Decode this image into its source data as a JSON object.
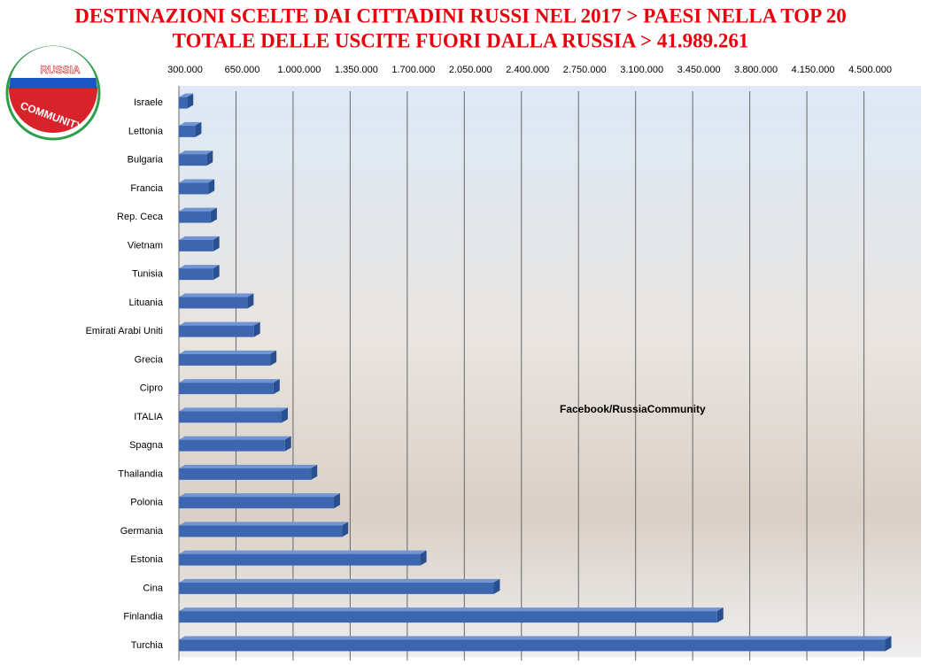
{
  "chart_data": {
    "type": "hbar",
    "title": "DESTINAZIONI SCELTE DAI CITTADINI RUSSI NEL 2017 > PAESI NELLA TOP 20",
    "subtitle": "TOTALE DELLE USCITE FUORI DALLA RUSSIA  > 41.989.261",
    "annotation": "Facebook/RussiaCommunity",
    "logo_text": [
      "RUSSIA",
      "COMMUNITY"
    ],
    "categories": [
      "Israele",
      "Lettonia",
      "Bulgaria",
      "Francia",
      "Rep. Ceca",
      "Vietnam",
      "Tunisia",
      "Lituania",
      "Emirati Arabi Uniti",
      "Grecia",
      "Cipro",
      "ITALIA",
      "Spagna",
      "Thailandia",
      "Polonia",
      "Germania",
      "Estonia",
      "Cina",
      "Finlandia",
      "Turchia"
    ],
    "values": [
      350000,
      400000,
      470000,
      480000,
      495000,
      510000,
      510000,
      720000,
      760000,
      860000,
      880000,
      930000,
      950000,
      1110000,
      1250000,
      1300000,
      1780000,
      2230000,
      3600000,
      4630000
    ],
    "color": "#3c67b0",
    "xlim": [
      300000,
      4850000
    ],
    "xticks": [
      {
        "value": 300000,
        "label": "300.000"
      },
      {
        "value": 650000,
        "label": "650.000"
      },
      {
        "value": 1000000,
        "label": "1.000.000"
      },
      {
        "value": 1350000,
        "label": "1.350.000"
      },
      {
        "value": 1700000,
        "label": "1.700.000"
      },
      {
        "value": 2050000,
        "label": "2.050.000"
      },
      {
        "value": 2400000,
        "label": "2.400.000"
      },
      {
        "value": 2750000,
        "label": "2.750.000"
      },
      {
        "value": 3100000,
        "label": "3.100.000"
      },
      {
        "value": 3450000,
        "label": "3.450.000"
      },
      {
        "value": 3800000,
        "label": "3.800.000"
      },
      {
        "value": 4150000,
        "label": "4.150.000"
      },
      {
        "value": 4500000,
        "label": "4.500.000"
      }
    ],
    "grid": true
  }
}
